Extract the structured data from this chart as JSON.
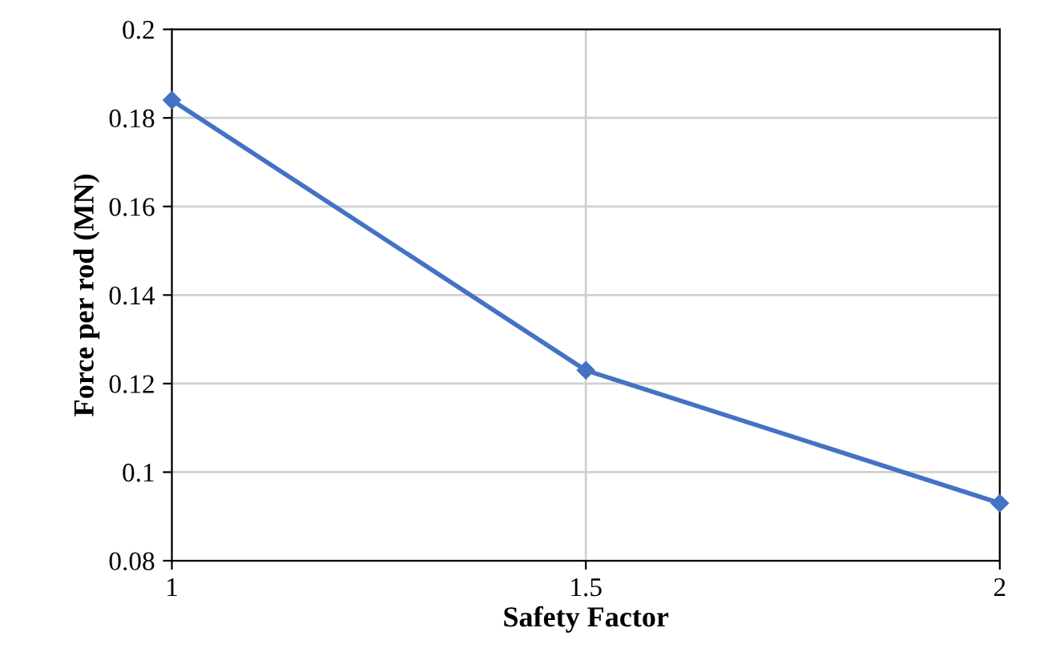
{
  "chart_data": {
    "type": "line",
    "xlabel": "Safety Factor",
    "ylabel": "Force per rod (MN)",
    "x": [
      1,
      1.5,
      2
    ],
    "series": [
      {
        "color": "#4472c4",
        "values": [
          0.184,
          0.123,
          0.093
        ]
      }
    ],
    "xlim": [
      1,
      2
    ],
    "xticks": [
      1,
      1.5,
      2
    ],
    "ylim": [
      0.08,
      0.2
    ],
    "yticks": [
      0.08,
      0.1,
      0.12,
      0.14,
      0.16,
      0.18,
      0.2
    ],
    "grid": true,
    "marker": "diamond",
    "line_style": "solid"
  }
}
